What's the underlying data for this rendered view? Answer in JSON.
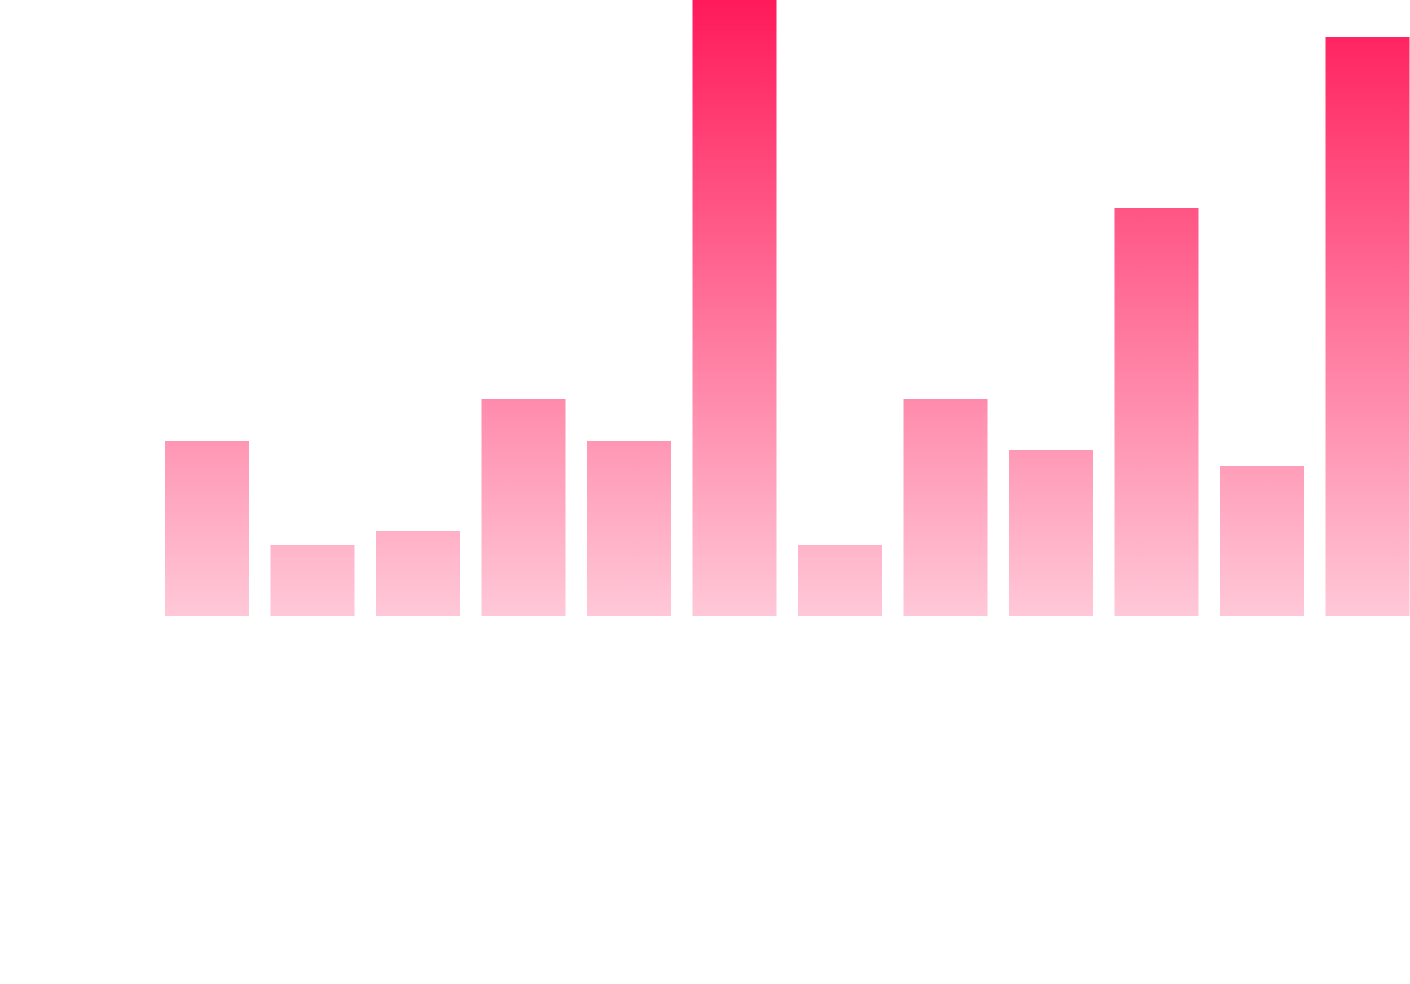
{
  "chart_data": {
    "type": "bar",
    "values": [
      175,
      71,
      85,
      217,
      175,
      616,
      71,
      217,
      166,
      408,
      150,
      579
    ],
    "ylim": [
      0,
      616
    ],
    "gradient": [
      "#ff1a5a",
      "#ffc8d8"
    ]
  }
}
